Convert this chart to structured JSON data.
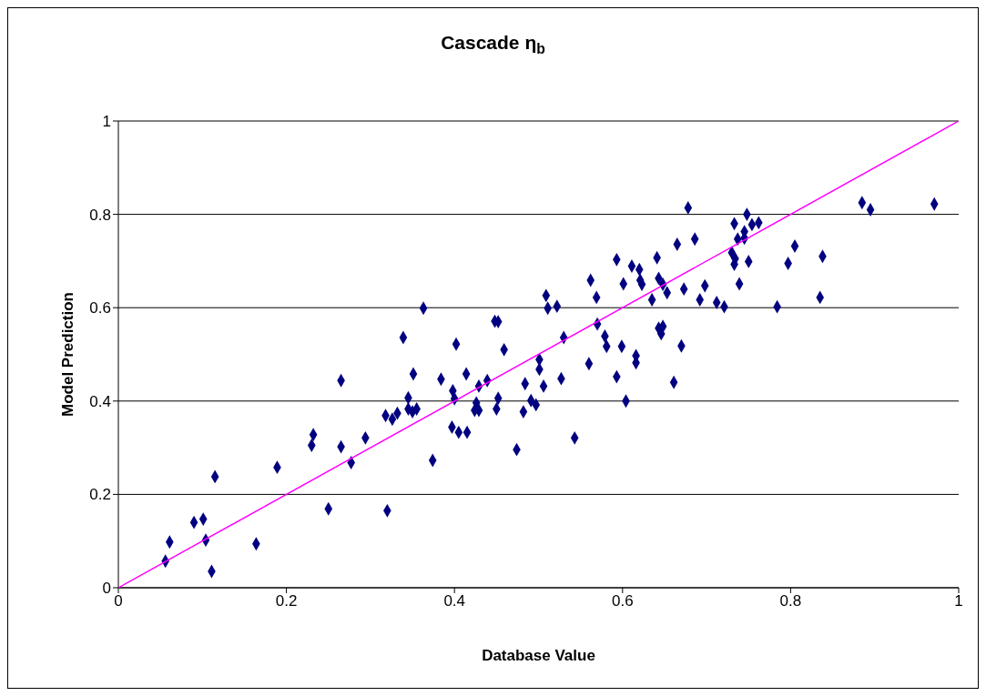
{
  "chart_data": {
    "type": "scatter",
    "title": "Cascade η$_{b}$",
    "xlabel": "Database Value",
    "ylabel": "Model Prediction",
    "xlim": [
      0,
      1
    ],
    "ylim": [
      0,
      1
    ],
    "xticks": [
      0,
      0.2,
      0.4,
      0.6,
      0.8,
      1
    ],
    "yticks": [
      0,
      0.2,
      0.4,
      0.6,
      0.8,
      1
    ],
    "grid": "y",
    "marker": "diamond",
    "series": [
      {
        "color": "#000080",
        "x": [
          0.056,
          0.061,
          0.104,
          0.111,
          0.09,
          0.101,
          0.115,
          0.164,
          0.189,
          0.25,
          0.23,
          0.232,
          0.265,
          0.265,
          0.277,
          0.294,
          0.32,
          0.318,
          0.326,
          0.332,
          0.351,
          0.345,
          0.345,
          0.35,
          0.355,
          0.363,
          0.339,
          0.402,
          0.448,
          0.452,
          0.459,
          0.384,
          0.414,
          0.398,
          0.4,
          0.429,
          0.439,
          0.452,
          0.45,
          0.484,
          0.482,
          0.491,
          0.497,
          0.501,
          0.501,
          0.506,
          0.426,
          0.429,
          0.424,
          0.397,
          0.405,
          0.415,
          0.474,
          0.374,
          0.509,
          0.511,
          0.522,
          0.562,
          0.569,
          0.601,
          0.621,
          0.623,
          0.643,
          0.648,
          0.653,
          0.635,
          0.53,
          0.57,
          0.579,
          0.581,
          0.599,
          0.56,
          0.616,
          0.616,
          0.593,
          0.604,
          0.661,
          0.67,
          0.543,
          0.527,
          0.678,
          0.748,
          0.733,
          0.754,
          0.762,
          0.745,
          0.737,
          0.745,
          0.686,
          0.665,
          0.805,
          0.797,
          0.73,
          0.734,
          0.733,
          0.75,
          0.739,
          0.641,
          0.593,
          0.611,
          0.62,
          0.673,
          0.698,
          0.692,
          0.712,
          0.721,
          0.784,
          0.643,
          0.646,
          0.648,
          0.885,
          0.895,
          0.971,
          0.838,
          0.835
        ],
        "values": [
          0.057,
          0.098,
          0.102,
          0.035,
          0.14,
          0.147,
          0.238,
          0.094,
          0.258,
          0.169,
          0.305,
          0.328,
          0.302,
          0.444,
          0.268,
          0.321,
          0.165,
          0.369,
          0.361,
          0.374,
          0.458,
          0.407,
          0.383,
          0.377,
          0.383,
          0.599,
          0.536,
          0.522,
          0.571,
          0.57,
          0.51,
          0.447,
          0.458,
          0.422,
          0.405,
          0.432,
          0.444,
          0.406,
          0.383,
          0.437,
          0.377,
          0.401,
          0.392,
          0.489,
          0.468,
          0.432,
          0.396,
          0.38,
          0.38,
          0.344,
          0.333,
          0.333,
          0.296,
          0.273,
          0.626,
          0.599,
          0.603,
          0.659,
          0.622,
          0.651,
          0.659,
          0.65,
          0.663,
          0.65,
          0.632,
          0.617,
          0.536,
          0.565,
          0.539,
          0.517,
          0.517,
          0.48,
          0.497,
          0.482,
          0.452,
          0.4,
          0.44,
          0.518,
          0.321,
          0.448,
          0.814,
          0.8,
          0.78,
          0.778,
          0.782,
          0.763,
          0.747,
          0.749,
          0.747,
          0.736,
          0.732,
          0.695,
          0.718,
          0.705,
          0.693,
          0.699,
          0.651,
          0.707,
          0.703,
          0.689,
          0.682,
          0.64,
          0.647,
          0.617,
          0.611,
          0.602,
          0.602,
          0.556,
          0.544,
          0.56,
          0.825,
          0.81,
          0.822,
          0.71,
          0.622
        ]
      },
      {
        "type": "line",
        "color": "#ff00ff",
        "marker": "none",
        "x": [
          0,
          1
        ],
        "values": [
          0,
          1
        ]
      }
    ]
  }
}
